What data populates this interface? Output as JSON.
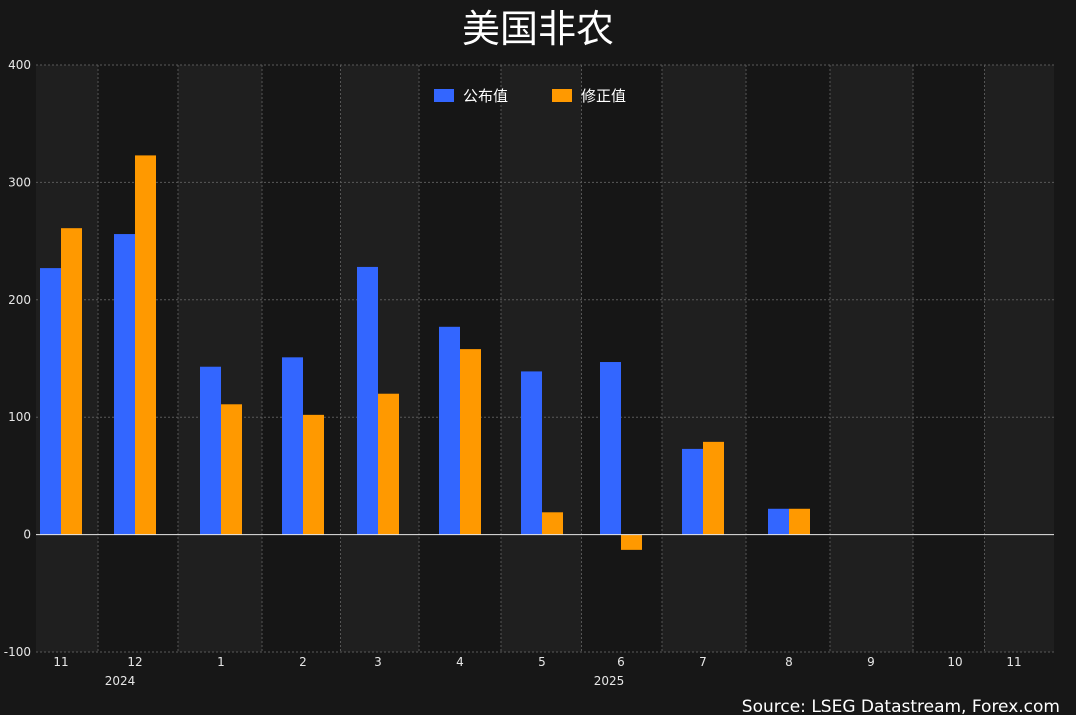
{
  "chart_data": {
    "type": "bar",
    "title": "美国非农",
    "source": "Source: LSEG Datastream, Forex.com",
    "categories": [
      "11",
      "12",
      "1",
      "2",
      "3",
      "4",
      "5",
      "6",
      "7",
      "8",
      "9",
      "10",
      "11"
    ],
    "year_labels": [
      {
        "label": "2024",
        "category_index": 1
      },
      {
        "label": "2025",
        "category_index": 6
      }
    ],
    "series": [
      {
        "name": "公布值",
        "color": "#3366ff",
        "values": [
          227,
          256,
          143,
          151,
          228,
          177,
          139,
          147,
          73,
          22,
          null,
          null,
          null
        ]
      },
      {
        "name": "修正值",
        "color": "#ff9900",
        "values": [
          261,
          323,
          111,
          102,
          120,
          158,
          19,
          -13,
          79,
          22,
          null,
          null,
          null
        ]
      }
    ],
    "ylim": [
      -100,
      400
    ],
    "yticks": [
      -100,
      0,
      100,
      200,
      300,
      400
    ],
    "grid": true,
    "legend_position": "top-center"
  }
}
